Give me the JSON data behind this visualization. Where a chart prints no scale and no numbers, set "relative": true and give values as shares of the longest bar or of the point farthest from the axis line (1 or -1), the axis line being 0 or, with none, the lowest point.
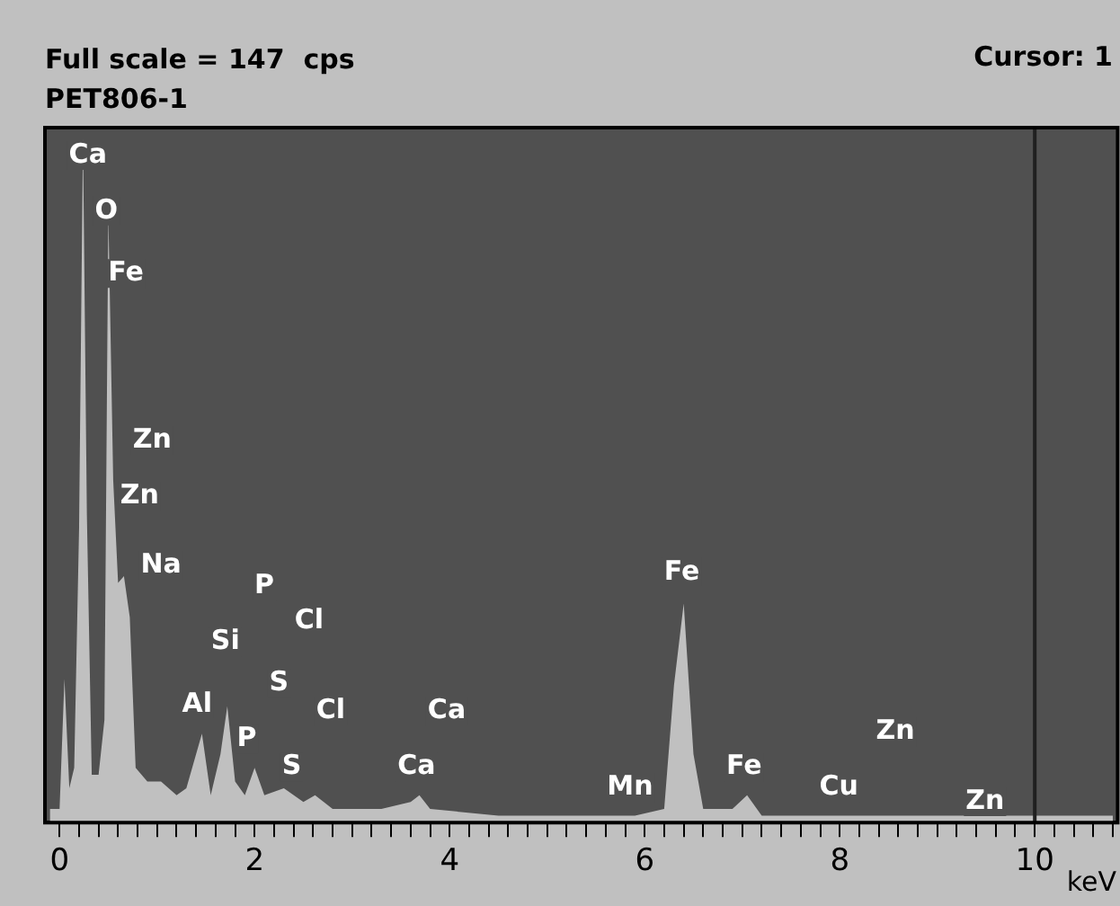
{
  "chart_data": {
    "type": "area",
    "title": "Full scale = 147  cps",
    "subtitle": "PET806-1",
    "xlabel": "keV",
    "relative": true,
    "legend": false,
    "grid": false,
    "annotations": [
      "Cursor: 1",
      "Ca",
      "O",
      "Fe",
      "Zn",
      "Zn",
      "Na",
      "P",
      "Cl",
      "Si",
      "S",
      "Al",
      "Cl",
      "Ca",
      "P",
      "S",
      "Ca",
      "Fe",
      "Mn",
      "Fe",
      "Zn",
      "Cu",
      "Zn"
    ],
    "xlim": [
      -0.15,
      10.85
    ],
    "xticks": [
      0,
      {
        "value": 0.2,
        "label": null
      },
      {
        "value": 0.4,
        "label": null
      },
      {
        "value": 0.6,
        "label": null
      },
      {
        "value": 0.8,
        "label": null
      },
      {
        "value": 1,
        "label": null
      },
      {
        "value": 1.2,
        "label": null
      },
      {
        "value": 1.4,
        "label": null
      },
      {
        "value": 1.6,
        "label": null
      },
      {
        "value": 1.8,
        "label": null
      },
      2,
      {
        "value": 2.2,
        "label": null
      },
      {
        "value": 2.4,
        "label": null
      },
      {
        "value": 2.6,
        "label": null
      },
      {
        "value": 2.8,
        "label": null
      },
      {
        "value": 3,
        "label": null
      },
      {
        "value": 3.2,
        "label": null
      },
      {
        "value": 3.4,
        "label": null
      },
      {
        "value": 3.6,
        "label": null
      },
      {
        "value": 3.8,
        "label": null
      },
      4,
      {
        "value": 4.2,
        "label": null
      },
      {
        "value": 4.4,
        "label": null
      },
      {
        "value": 4.6,
        "label": null
      },
      {
        "value": 4.8,
        "label": null
      },
      {
        "value": 5,
        "label": null
      },
      {
        "value": 5.2,
        "label": null
      },
      {
        "value": 5.4,
        "label": null
      },
      {
        "value": 5.6,
        "label": null
      },
      {
        "value": 5.8,
        "label": null
      },
      6,
      {
        "value": 6.2,
        "label": null
      },
      {
        "value": 6.4,
        "label": null
      },
      {
        "value": 6.6,
        "label": null
      },
      {
        "value": 6.8,
        "label": null
      },
      {
        "value": 7,
        "label": null
      },
      {
        "value": 7.2,
        "label": null
      },
      {
        "value": 7.4,
        "label": null
      },
      {
        "value": 7.6,
        "label": null
      },
      {
        "value": 7.8,
        "label": null
      },
      8,
      {
        "value": 8.2,
        "label": null
      },
      {
        "value": 8.4,
        "label": null
      },
      {
        "value": 8.6,
        "label": null
      },
      {
        "value": 8.8,
        "label": null
      },
      {
        "value": 9,
        "label": null
      },
      {
        "value": 9.2,
        "label": null
      },
      {
        "value": 9.4,
        "label": null
      },
      {
        "value": 9.6,
        "label": null
      },
      {
        "value": 9.8,
        "label": null
      },
      10,
      {
        "value": 10.2,
        "label": null
      },
      {
        "value": 10.4,
        "label": null
      },
      {
        "value": 10.6,
        "label": null
      },
      {
        "value": 10.8,
        "label": null
      }
    ],
    "ref_lines": [
      {
        "axis": "x",
        "value": 10,
        "color": "#202020"
      }
    ],
    "x": [
      -0.1,
      0,
      0.05,
      0.1,
      0.15,
      0.2,
      0.24,
      0.28,
      0.33,
      0.4,
      0.46,
      0.5,
      0.55,
      0.6,
      0.66,
      0.72,
      0.78,
      0.9,
      1.04,
      1.2,
      1.3,
      1.4,
      1.46,
      1.55,
      1.65,
      1.72,
      1.8,
      1.9,
      2,
      2.1,
      2.3,
      2.5,
      2.62,
      2.8,
      3.3,
      3.6,
      3.69,
      3.8,
      4.5,
      5.5,
      5.9,
      6.2,
      6.3,
      6.4,
      6.5,
      6.6,
      6.9,
      7.05,
      7.2,
      8,
      8.6,
      9.6,
      10.8
    ],
    "series": [
      {
        "color": "#c0c0c0",
        "values": [
          0.02,
          0.02,
          0.21,
          0.05,
          0.08,
          0.43,
          1,
          0.45,
          0.07,
          0.07,
          0.15,
          0.89,
          0.5,
          0.35,
          0.36,
          0.3,
          0.08,
          0.06,
          0.06,
          0.04,
          0.05,
          0.1,
          0.13,
          0.04,
          0.1,
          0.17,
          0.06,
          0.04,
          0.08,
          0.04,
          0.05,
          0.03,
          0.04,
          0.02,
          0.02,
          0.03,
          0.04,
          0.02,
          0.01,
          0.01,
          0.01,
          0.02,
          0.2,
          0.32,
          0.1,
          0.02,
          0.02,
          0.04,
          0.01,
          0.01,
          0.01,
          0.01,
          0.01
        ]
      }
    ]
  }
}
